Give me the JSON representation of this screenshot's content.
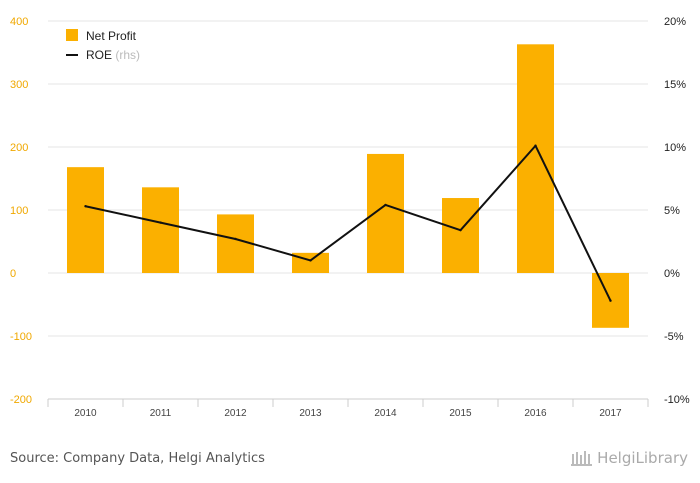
{
  "chart_data": {
    "type": "bar",
    "categories": [
      "2010",
      "2011",
      "2012",
      "2013",
      "2014",
      "2015",
      "2016",
      "2017"
    ],
    "series": [
      {
        "name": "Net Profit",
        "type": "bar",
        "axis": "left",
        "values": [
          168,
          136,
          93,
          32,
          189,
          119,
          363,
          -87
        ]
      },
      {
        "name": "ROE",
        "type": "line",
        "axis": "right",
        "values": [
          5.3,
          4.0,
          2.7,
          1.0,
          5.4,
          3.4,
          10.1,
          -2.2
        ]
      }
    ],
    "legend_suffix": "(rhs)",
    "y_left": {
      "ylim": [
        -200,
        400
      ],
      "ticks": [
        "400",
        "300",
        "200",
        "100",
        "0",
        "-100",
        "-200"
      ]
    },
    "y_right": {
      "ylim": [
        -10,
        20
      ],
      "ticks": [
        "20%",
        "15%",
        "10%",
        "5%",
        "0%",
        "-5%",
        "-10%"
      ]
    },
    "grid": true,
    "legend_position": "top-left",
    "colors": {
      "bar": "#fbb000",
      "line": "#111111",
      "grid": "#e6e6e6"
    }
  },
  "footer": {
    "source": "Source: Company Data, Helgi Analytics",
    "brand": "HelgiLibrary"
  }
}
